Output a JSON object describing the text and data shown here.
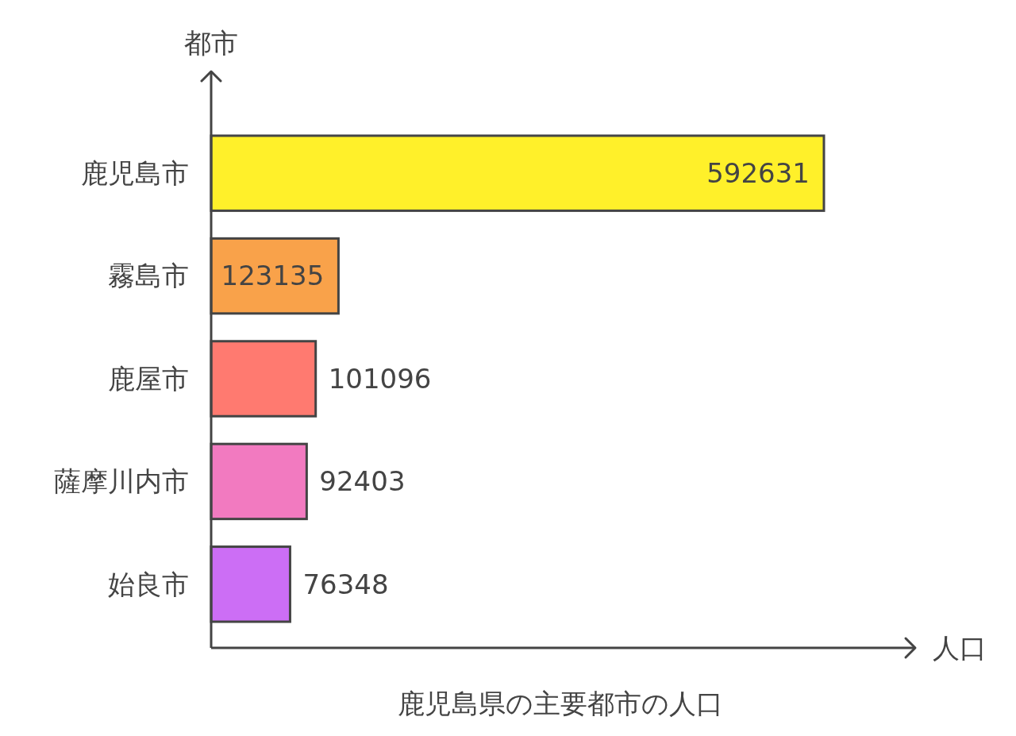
{
  "chart_data": {
    "type": "bar",
    "orientation": "horizontal",
    "title": "鹿児島県の主要都市の人口",
    "xlabel": "人口",
    "ylabel": "都市",
    "categories": [
      "鹿児島市",
      "霧島市",
      "鹿屋市",
      "薩摩川内市",
      "始良市"
    ],
    "values": [
      592631,
      123135,
      101096,
      92403,
      76348
    ],
    "colors": [
      "#fff02a",
      "#f9a24a",
      "#ff7a70",
      "#f27ac0",
      "#cc6ef5"
    ],
    "data_labels": true
  }
}
